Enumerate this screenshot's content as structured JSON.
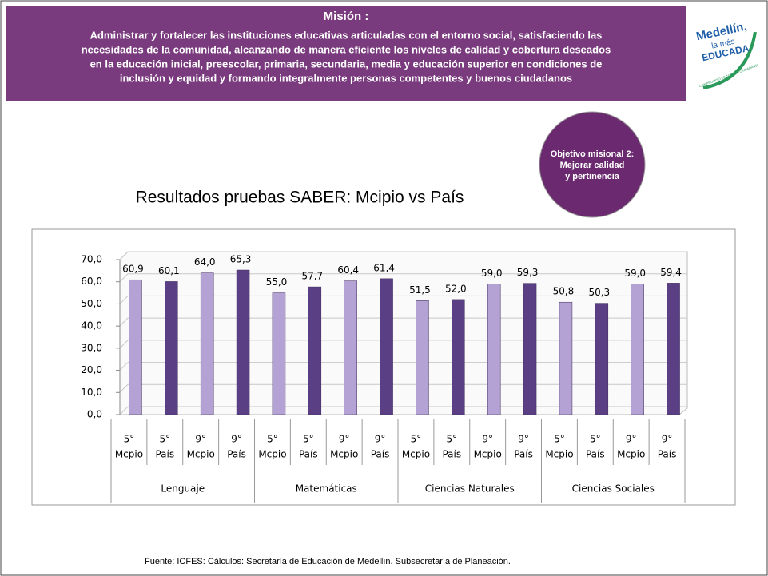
{
  "header": {
    "title": "Misión :",
    "lines": [
      "Administrar y fortalecer las instituciones educativas articuladas con el entorno social, satisfaciendo las",
      "necesidades de la comunidad, alcanzando de manera eficiente los niveles de calidad y cobertura deseados",
      "en la educación inicial, preescolar, primaria, secundaria, media y educación superior en condiciones de",
      "inclusión y equidad y formando integralmente personas competentes y buenos ciudadanos"
    ]
  },
  "logo": {
    "line1": "Medellín,",
    "line2": "la más",
    "line3": "EDUCADA",
    "tagline": "COMPROMISO DE TODA LA CIUDADANÍA"
  },
  "badge": {
    "lines": [
      "Objetivo misional 2:",
      "Mejorar calidad",
      "y pertinencia"
    ]
  },
  "chart_data": {
    "type": "bar",
    "title": "Resultados pruebas SABER: Mcipio vs País",
    "categories": [
      [
        "5°",
        "Mcpio"
      ],
      [
        "5°",
        "País"
      ],
      [
        "9°",
        "Mcpio"
      ],
      [
        "9°",
        "País"
      ],
      [
        "5°",
        "Mcpio"
      ],
      [
        "5°",
        "País"
      ],
      [
        "9°",
        "Mcpio"
      ],
      [
        "9°",
        "País"
      ],
      [
        "5°",
        "Mcpio"
      ],
      [
        "5°",
        "País"
      ],
      [
        "9°",
        "Mcpio"
      ],
      [
        "9°",
        "País"
      ],
      [
        "5°",
        "Mcpio"
      ],
      [
        "5°",
        "País"
      ],
      [
        "9°",
        "Mcpio"
      ],
      [
        "9°",
        "País"
      ]
    ],
    "groups": [
      "Lenguaje",
      "Matemáticas",
      "Ciencias Naturales",
      "Ciencias Sociales"
    ],
    "values": [
      60.9,
      60.1,
      64.0,
      65.3,
      55.0,
      57.7,
      60.4,
      61.4,
      51.5,
      52.0,
      59.0,
      59.3,
      50.8,
      50.3,
      59.0,
      59.4
    ],
    "value_labels": [
      "60,9",
      "60,1",
      "64,0",
      "65,3",
      "55,0",
      "57,7",
      "60,4",
      "61,4",
      "51,5",
      "52,0",
      "59,0",
      "59,3",
      "50,8",
      "50,3",
      "59,0",
      "59,4"
    ],
    "colors": [
      "#b3a2d3",
      "#5b3f84",
      "#b3a2d3",
      "#5b3f84",
      "#b3a2d3",
      "#5b3f84",
      "#b3a2d3",
      "#5b3f84",
      "#b3a2d3",
      "#5b3f84",
      "#b3a2d3",
      "#5b3f84",
      "#b3a2d3",
      "#5b3f84",
      "#b3a2d3",
      "#5b3f84"
    ],
    "ylim": [
      0,
      70
    ],
    "yticks": [
      {
        "value": 0,
        "label": "0,0"
      },
      {
        "value": 10,
        "label": "10,0"
      },
      {
        "value": 20,
        "label": "20,0"
      },
      {
        "value": 30,
        "label": "30,0"
      },
      {
        "value": 40,
        "label": "40,0"
      },
      {
        "value": 50,
        "label": "50,0"
      },
      {
        "value": 60,
        "label": "60,0"
      },
      {
        "value": 70,
        "label": "70,0"
      }
    ],
    "grid": true
  },
  "footer": {
    "source": "Fuente: ICFES: Cálculos: Secretaría de Educación de Medellín. Subsecretaría de Planeación."
  }
}
